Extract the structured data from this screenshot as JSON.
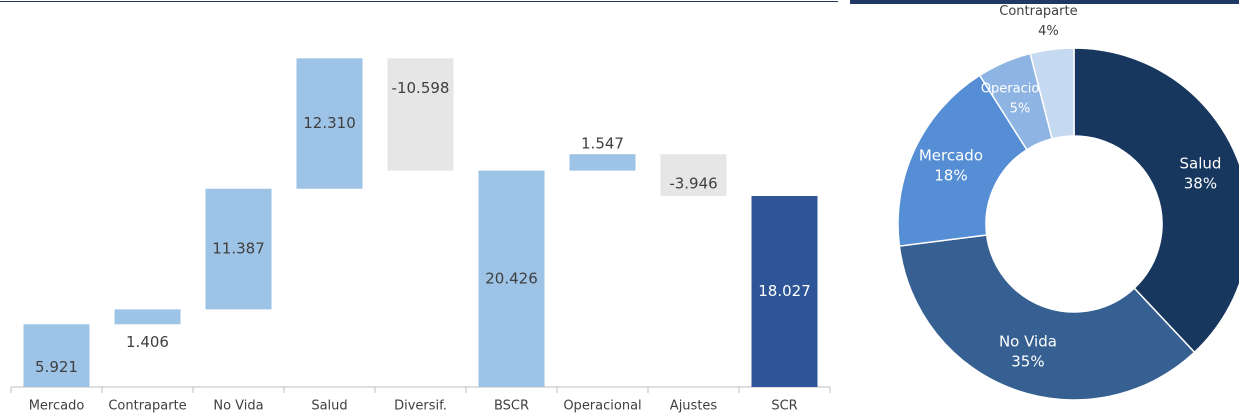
{
  "chart_data": [
    {
      "type": "waterfall",
      "categories": [
        "Mercado",
        "Contraparte",
        "No Vida",
        "Salud",
        "Diversif.",
        "BSCR",
        "Operacional",
        "Ajustes",
        "SCR"
      ],
      "values": [
        5921,
        1406,
        11387,
        12310,
        -10598,
        20426,
        1547,
        -3946,
        18027
      ],
      "value_labels": [
        "5.921",
        "1.406",
        "11.387",
        "12.310",
        "-10.598",
        "20.426",
        "1.547",
        "-3.946",
        "18.027"
      ],
      "colors": [
        "#9dc3e6",
        "#9dc3e6",
        "#9dc3e6",
        "#9dc3e6",
        "#e7e6e6",
        "#9dc3e6",
        "#9dc3e6",
        "#e7e6e6",
        "#2e5597"
      ],
      "ylim": [
        0,
        32000
      ]
    },
    {
      "type": "donut",
      "categories": [
        "Salud",
        "No Vida",
        "Mercado",
        "Operacional",
        "Contraparte"
      ],
      "values": [
        38,
        35,
        18,
        5,
        4
      ],
      "value_labels": [
        "38%",
        "35%",
        "18%",
        "5%",
        "4%"
      ],
      "colors": [
        "#17375e",
        "#366092",
        "#558ed5",
        "#8db4e2",
        "#c5d9f1"
      ]
    }
  ]
}
